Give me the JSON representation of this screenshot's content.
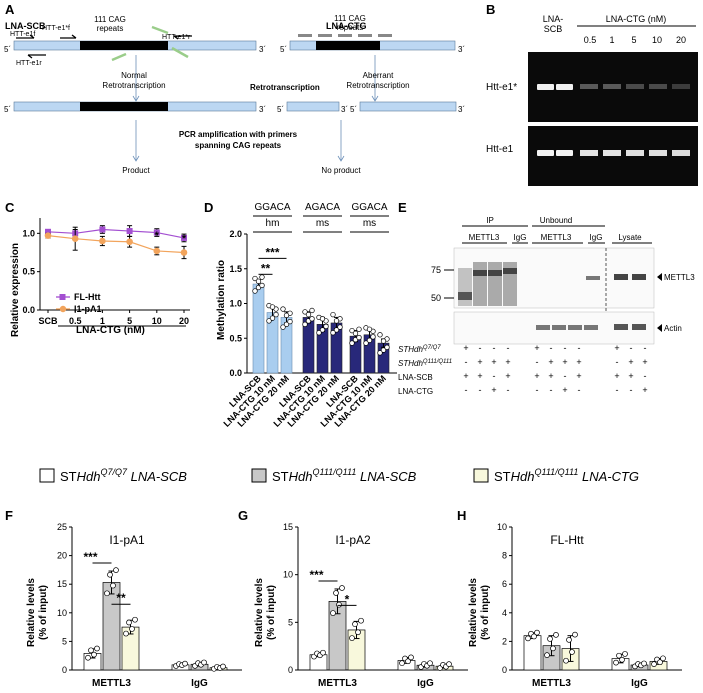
{
  "panels": {
    "A": "A",
    "B": "B",
    "C": "C",
    "D": "D",
    "E": "E",
    "F": "F",
    "G": "G",
    "H": "H"
  },
  "panelA": {
    "lna_scb": "LNA-SCB",
    "lna_ctg": "LNA-CTG",
    "repeats_left": "111 CAG",
    "repeats_left2": "repeats",
    "repeats_right": "111 CAG",
    "repeats_right2": "repeats",
    "primer_e1f": "HTT-e1f",
    "primer_e1star_f": "HTT-e1*f",
    "primer_e1r": "HTT-e1r",
    "primer_e1star_r": "HTT-e1*r",
    "prime5": "5´",
    "prime3": "3´",
    "normal1": "Normal",
    "normal2": "Retrotranscription",
    "retro": "Retrotranscription",
    "aberrant1": "Aberrant",
    "aberrant2": "Retrotranscription",
    "pcr1": "PCR amplification with primers",
    "pcr2": "spanning CAG repeats",
    "product": "Product",
    "no_product": "No product"
  },
  "panelB": {
    "lna_scb": "LNA-",
    "lna_scb2": "SCB",
    "lna_ctg": "LNA-CTG (nM)",
    "doses": [
      "0.5",
      "1",
      "5",
      "10",
      "20"
    ],
    "row1": "Htt-e1*",
    "row2": "Htt-e1"
  },
  "chart_C": {
    "type": "line",
    "categories": [
      "SCB",
      "0.5",
      "1",
      "5",
      "10",
      "20"
    ],
    "ylabel": "Relative expression",
    "xgroup": "LNA-CTG (nM)",
    "ylim": [
      0.0,
      1.2
    ],
    "yticks": [
      "0.0",
      "0.5",
      "1.0"
    ],
    "series": [
      {
        "name": "FL-Htt",
        "color": "#a34fd1",
        "values": [
          1.02,
          1.0,
          1.05,
          1.03,
          1.01,
          0.94
        ],
        "err": [
          0.03,
          0.05,
          0.05,
          0.07,
          0.05,
          0.05
        ]
      },
      {
        "name": "I1-pA1",
        "color": "#f2a45c",
        "values": [
          0.97,
          0.93,
          0.9,
          0.89,
          0.77,
          0.75
        ],
        "err": [
          0.03,
          0.15,
          0.06,
          0.07,
          0.05,
          0.08
        ]
      }
    ],
    "stars": [
      "*",
      "*"
    ]
  },
  "chart_D": {
    "type": "bar",
    "ylabel": "Methylation ratio",
    "ylim": [
      0.0,
      2.0
    ],
    "yticks": [
      "0.0",
      "0.5",
      "1.0",
      "1.5",
      "2.0"
    ],
    "headers": [
      {
        "l1": "GGACA",
        "l2": "hm"
      },
      {
        "l1": "AGACA",
        "l2": "ms"
      },
      {
        "l1": "GGACA",
        "l2": "ms"
      }
    ],
    "categories": [
      "LNA-SCB",
      "LNA-CTG 10 nM",
      "LNA-CTG 20 nM"
    ],
    "groups": [
      {
        "color": "#a9cdef",
        "values": [
          1.28,
          0.87,
          0.8
        ],
        "err": [
          0.06,
          0.08,
          0.08
        ]
      },
      {
        "color": "#28287a",
        "values": [
          0.8,
          0.7,
          0.72
        ],
        "err": [
          0.08,
          0.1,
          0.08
        ]
      },
      {
        "color": "#28287a",
        "values": [
          0.53,
          0.55,
          0.43
        ],
        "err": [
          0.08,
          0.08,
          0.06
        ]
      }
    ],
    "sig": [
      "***",
      "**"
    ]
  },
  "panelE": {
    "ip": "IP",
    "unbound": "Unbound",
    "lysate": "Lysate",
    "mettl3": "METTL3",
    "igg": "IgG",
    "m75": "75",
    "m50": "50",
    "band_mettl3": "METTL3",
    "band_actin": "Actin",
    "row_q7": "STHdh",
    "row_q7_sup": "Q7/Q7",
    "row_q111": "STHdh",
    "row_q111_sup": "Q111/Q111",
    "row_scb": "LNA-SCB",
    "row_ctg": "LNA-CTG",
    "signs": {
      "q7": [
        "+",
        "-",
        "-",
        "-",
        "+",
        "-",
        "-",
        "-",
        "+",
        "-",
        "-"
      ],
      "q111": [
        "-",
        "+",
        "+",
        "+",
        "-",
        "+",
        "+",
        "+",
        "-",
        "+",
        "+"
      ],
      "scb": [
        "+",
        "+",
        "-",
        "+",
        "+",
        "+",
        "-",
        "+",
        "+",
        "+",
        "-"
      ],
      "ctg": [
        "-",
        "-",
        "+",
        "-",
        "-",
        "-",
        "+",
        "-",
        "-",
        "-",
        "+"
      ]
    }
  },
  "legend": {
    "items": [
      {
        "pre": "ST",
        "it": "Hdh",
        "sup": "Q7/Q7",
        "post": " LNA-SCB",
        "color": "#ffffff"
      },
      {
        "pre": "ST",
        "it": "Hdh",
        "sup": "Q111/Q111",
        "post": " LNA-SCB",
        "color": "#c8c8c8"
      },
      {
        "pre": "ST",
        "it": "Hdh",
        "sup": "Q111/Q111",
        "post": " LNA-CTG",
        "color": "#f8f8dc"
      }
    ]
  },
  "chart_F": {
    "type": "bar",
    "title": "I1-pA1",
    "ylabel1": "Relative levels",
    "ylabel2": "(% of input)",
    "ylim": [
      0,
      25
    ],
    "yticks": [
      "0",
      "5",
      "10",
      "15",
      "20",
      "25"
    ],
    "categories": [
      "METTL3",
      "IgG"
    ],
    "values": [
      [
        2.9,
        15.3,
        7.5
      ],
      [
        0.9,
        1.0,
        0.4
      ]
    ],
    "err": [
      [
        0.8,
        2.0,
        1.2
      ],
      [
        0.2,
        0.3,
        0.2
      ]
    ],
    "sig": [
      "***",
      "**"
    ]
  },
  "chart_G": {
    "type": "bar",
    "title": "I1-pA2",
    "ylabel1": "Relative levels",
    "ylabel2": "(% of input)",
    "ylim": [
      0,
      15
    ],
    "yticks": [
      "0",
      "5",
      "10",
      "15"
    ],
    "categories": [
      "METTL3",
      "IgG"
    ],
    "values": [
      [
        1.6,
        7.2,
        4.2
      ],
      [
        1.0,
        0.5,
        0.4
      ]
    ],
    "err": [
      [
        0.2,
        1.3,
        0.9
      ],
      [
        0.3,
        0.2,
        0.2
      ]
    ],
    "sig": [
      "***",
      "*"
    ]
  },
  "chart_H": {
    "type": "bar",
    "title": "FL-Htt",
    "ylabel1": "Relative levels",
    "ylabel2": "(% of input)",
    "ylim": [
      0,
      10
    ],
    "yticks": [
      "0",
      "2",
      "4",
      "6",
      "8",
      "10"
    ],
    "categories": [
      "METTL3",
      "IgG"
    ],
    "values": [
      [
        2.4,
        1.7,
        1.5
      ],
      [
        0.8,
        0.35,
        0.6
      ]
    ],
    "err": [
      [
        0.2,
        0.7,
        0.9
      ],
      [
        0.3,
        0.1,
        0.2
      ]
    ],
    "sig": []
  },
  "colors": {
    "ctrl": "#ffffff",
    "q111scb": "#c8c8c8",
    "q111ctg": "#f8f8dc",
    "dna": "#bcd7f2",
    "cag": "#000000"
  }
}
